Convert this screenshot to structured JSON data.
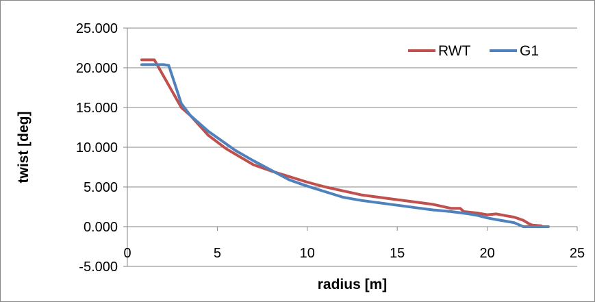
{
  "chart_data": {
    "type": "line",
    "title": "",
    "xlabel": "radius [m]",
    "ylabel": "twist [deg]",
    "xlim": [
      0,
      25
    ],
    "ylim": [
      -5,
      25
    ],
    "x_ticks": [
      0,
      5,
      10,
      15,
      20,
      25
    ],
    "x_tick_labels": [
      "0",
      "5",
      "10",
      "15",
      "20",
      "25"
    ],
    "y_ticks": [
      -5,
      0,
      5,
      10,
      15,
      20,
      25
    ],
    "y_tick_labels": [
      "-5.000",
      "0.000",
      "5.000",
      "10.000",
      "15.000",
      "20.000",
      "25.000"
    ],
    "grid": "horizontal",
    "legend_position": "top-right",
    "series": [
      {
        "name": "RWT",
        "color": "#c0504d",
        "x": [
          0.8,
          1.5,
          2.0,
          3.0,
          3.5,
          4.5,
          5.5,
          7.0,
          8.0,
          9.0,
          10.0,
          11.0,
          12.0,
          13.0,
          14.0,
          15.0,
          16.0,
          17.0,
          18.0,
          18.5,
          18.7,
          19.5,
          20.0,
          20.5,
          21.0,
          21.5,
          22.0,
          22.3,
          22.5,
          23.0
        ],
        "values": [
          21.0,
          21.0,
          19.0,
          15.0,
          14.0,
          11.5,
          9.8,
          7.8,
          7.0,
          6.3,
          5.6,
          5.0,
          4.5,
          4.0,
          3.7,
          3.4,
          3.1,
          2.8,
          2.3,
          2.3,
          1.9,
          1.7,
          1.5,
          1.6,
          1.4,
          1.2,
          0.8,
          0.4,
          0.2,
          0.1
        ]
      },
      {
        "name": "G1",
        "color": "#4f81bd",
        "x": [
          0.8,
          2.0,
          2.3,
          3.0,
          3.5,
          4.5,
          6.0,
          7.0,
          8.0,
          9.0,
          10.0,
          11.0,
          12.0,
          13.0,
          14.0,
          15.0,
          16.0,
          17.0,
          18.0,
          19.0,
          19.5,
          20.0,
          20.5,
          21.0,
          21.5,
          22.0,
          22.3,
          23.0,
          23.4
        ],
        "values": [
          20.4,
          20.4,
          20.3,
          15.5,
          14.0,
          12.0,
          9.6,
          8.3,
          7.1,
          5.9,
          5.1,
          4.4,
          3.7,
          3.3,
          3.0,
          2.7,
          2.4,
          2.1,
          1.9,
          1.6,
          1.4,
          1.1,
          0.9,
          0.7,
          0.5,
          0.0,
          0.0,
          0.0,
          0.0
        ]
      }
    ]
  }
}
